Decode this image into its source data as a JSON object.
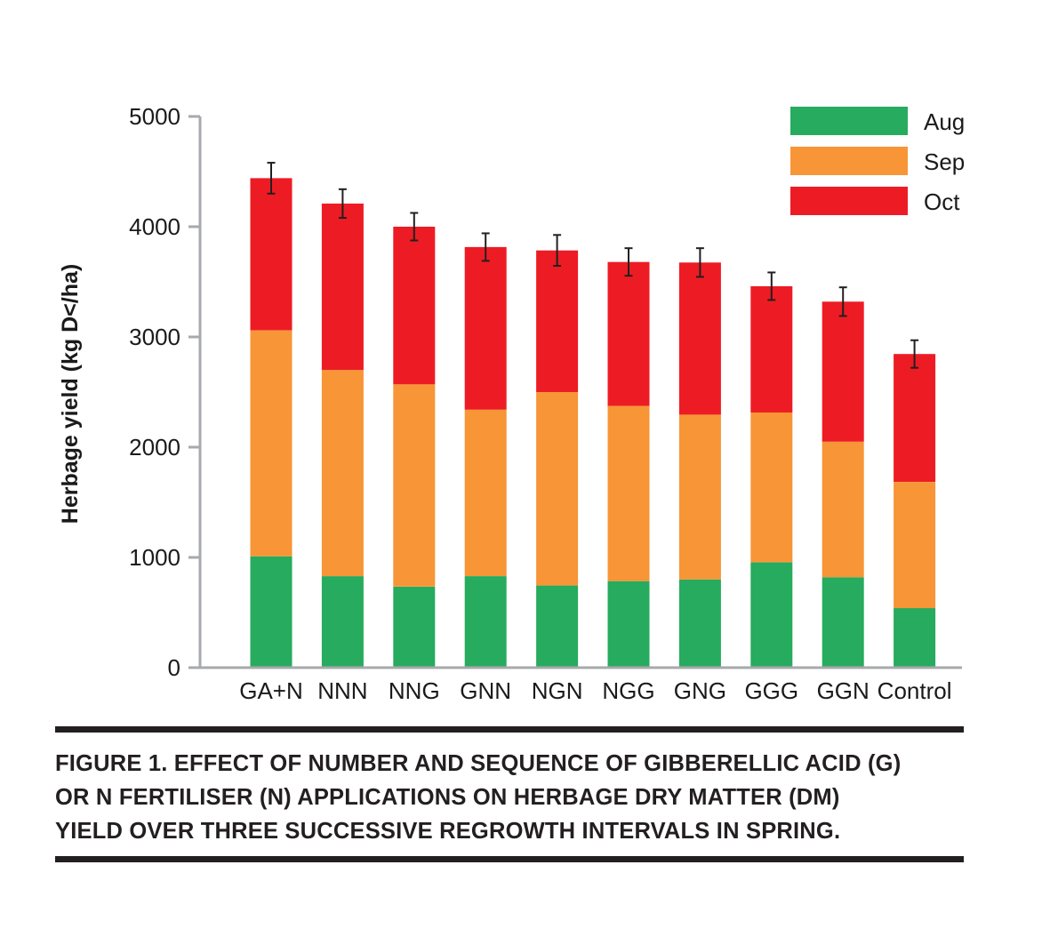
{
  "chart_data": {
    "type": "bar",
    "stacked": true,
    "categories": [
      "GA+N",
      "NNN",
      "NNG",
      "GNN",
      "NGN",
      "NGG",
      "GNG",
      "GGG",
      "GGN",
      "Control"
    ],
    "series": [
      {
        "name": "Aug",
        "color": "#27ab5e",
        "values": [
          1010,
          830,
          735,
          830,
          745,
          785,
          800,
          955,
          820,
          540
        ]
      },
      {
        "name": "Sep",
        "color": "#f79537",
        "values": [
          2050,
          1870,
          1835,
          1510,
          1755,
          1590,
          1495,
          1360,
          1230,
          1145
        ]
      },
      {
        "name": "Oct",
        "color": "#ed1c24",
        "values": [
          1380,
          1510,
          1430,
          1475,
          1285,
          1305,
          1380,
          1145,
          1270,
          1160
        ]
      }
    ],
    "error_bars": [
      140,
      130,
      125,
      125,
      140,
      125,
      130,
      125,
      130,
      125
    ],
    "ylabel": "Herbage yield (kg D</ha)",
    "xlabel": "",
    "ylim": [
      0,
      5000
    ],
    "yticks": [
      0,
      1000,
      2000,
      3000,
      4000,
      5000
    ],
    "grid": false,
    "legend_position": "top-right"
  },
  "caption": {
    "lines": [
      "FIGURE 1. EFFECT OF NUMBER AND SEQUENCE OF GIBBERELLIC ACID (G)",
      "OR N FERTILISER (N) APPLICATIONS ON HERBAGE DRY MATTER (DM)",
      "YIELD OVER THREE SUCCESSIVE REGROWTH INTERVALS IN SPRING."
    ]
  }
}
